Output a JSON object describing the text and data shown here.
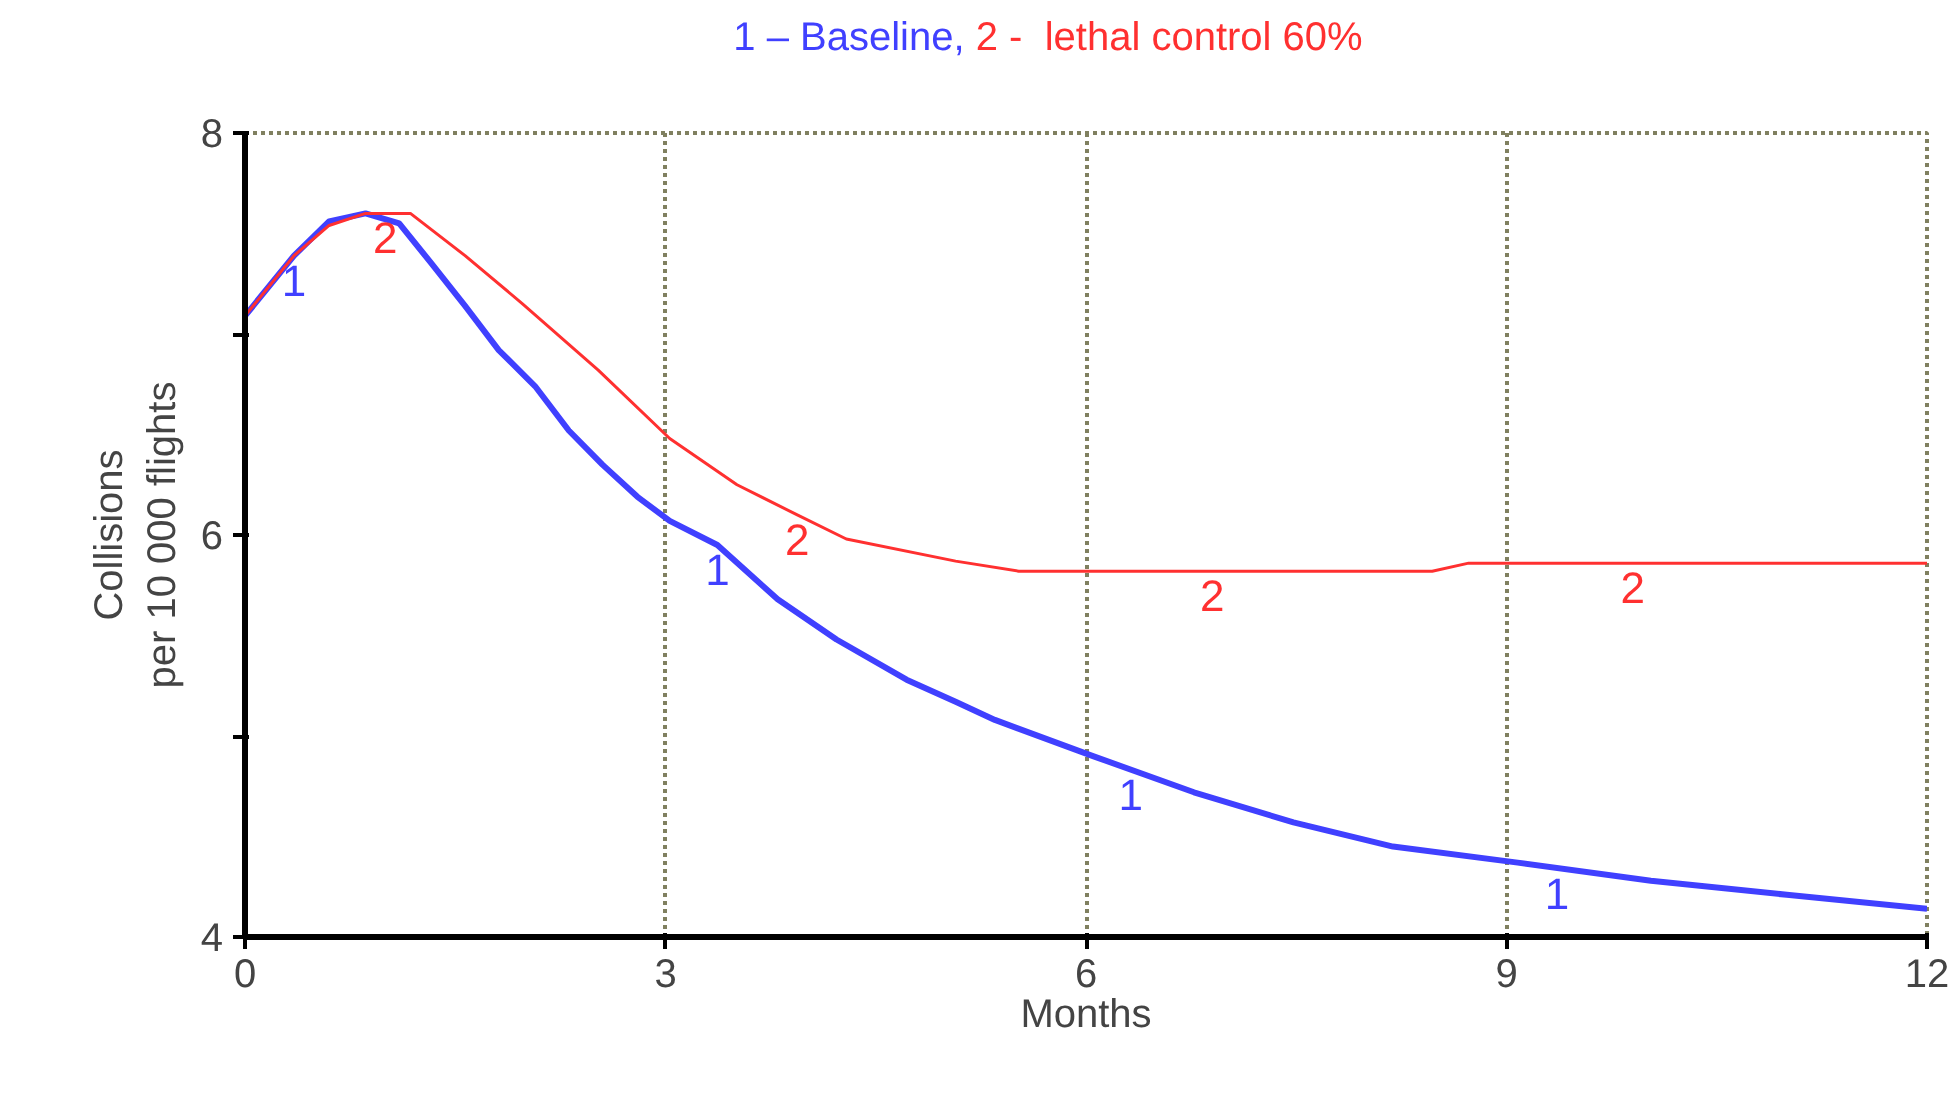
{
  "chart_data": {
    "type": "line",
    "xlabel": "Months",
    "ylabel": "Collisions\nper 10 000 flights",
    "xlim": [
      0,
      12
    ],
    "ylim": [
      4,
      8
    ],
    "xticks": [
      0,
      3,
      6,
      9,
      12
    ],
    "yticks": [
      4,
      {
        "value": 5,
        "label": null
      },
      6,
      {
        "value": 7,
        "label": null
      },
      8
    ],
    "grid": "x",
    "line_style": "solid",
    "series": [
      {
        "name": "1 – Baseline,",
        "color": "#4040ff",
        "x": [
          0,
          0.35,
          0.6,
          0.86,
          1.1,
          1.32,
          1.57,
          1.81,
          2.07,
          2.31,
          2.55,
          2.8,
          3.03,
          3.37,
          3.8,
          4.22,
          4.72,
          5.07,
          5.35,
          6.05,
          6.77,
          7.48,
          8.19,
          9.08,
          10.03,
          11.0,
          12
        ],
        "values": [
          7.09,
          7.39,
          7.56,
          7.6,
          7.55,
          7.36,
          7.14,
          6.92,
          6.74,
          6.52,
          6.35,
          6.19,
          6.07,
          5.95,
          5.68,
          5.48,
          5.28,
          5.17,
          5.08,
          4.9,
          4.72,
          4.57,
          4.45,
          4.37,
          4.28,
          4.21,
          4.14
        ]
      },
      {
        "name": "2 -  lethal control 60%",
        "color": "#ff3030",
        "x": [
          0,
          0.35,
          0.6,
          0.86,
          1.18,
          1.57,
          1.98,
          2.52,
          3.03,
          3.51,
          3.94,
          4.29,
          5.07,
          5.52,
          8.47,
          8.73,
          12
        ],
        "values": [
          7.09,
          7.39,
          7.54,
          7.6,
          7.6,
          7.39,
          7.15,
          6.82,
          6.48,
          6.25,
          6.1,
          5.98,
          5.87,
          5.82,
          5.82,
          5.86,
          5.86
        ]
      }
    ],
    "annotations": [
      {
        "text": "1",
        "x": 0.35,
        "y": 7.39
      },
      {
        "text": "1",
        "x": 3.37,
        "y": 5.95
      },
      {
        "text": "1",
        "x": 6.32,
        "y": 4.83
      },
      {
        "text": "1",
        "x": 9.36,
        "y": 4.34
      },
      {
        "text": "2",
        "x": 1.0,
        "y": 7.6
      },
      {
        "text": "2",
        "x": 3.94,
        "y": 6.1
      },
      {
        "text": "2",
        "x": 6.9,
        "y": 5.82
      },
      {
        "text": "2",
        "x": 9.9,
        "y": 5.86
      }
    ]
  }
}
